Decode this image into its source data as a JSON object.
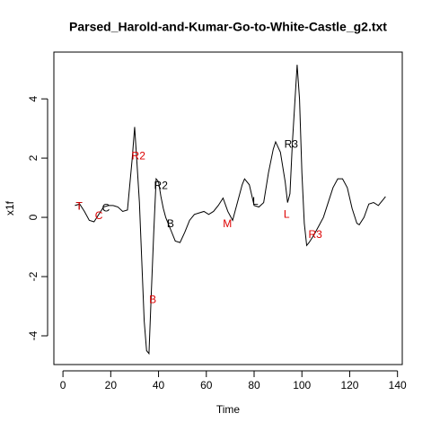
{
  "chart_data": {
    "type": "line",
    "title": "Parsed_Harold-and-Kumar-Go-to-White-Castle_g2.txt",
    "xlabel": "Time",
    "ylabel": "x1f",
    "color": "#000000",
    "x": [
      5,
      7,
      9,
      11,
      13,
      15,
      17,
      19,
      21,
      23,
      25,
      27,
      29,
      30,
      31,
      32,
      33,
      34,
      35,
      36,
      37,
      38,
      39,
      40,
      41,
      42,
      43,
      45,
      47,
      49,
      51,
      53,
      55,
      57,
      59,
      61,
      63,
      65,
      67,
      69,
      71,
      73,
      75,
      76,
      78,
      80,
      82,
      84,
      86,
      88,
      89,
      91,
      93,
      94,
      95,
      96,
      98,
      99,
      100,
      101,
      102,
      103,
      105,
      107,
      109,
      111,
      113,
      115,
      117,
      119,
      121,
      123,
      124,
      126,
      128,
      130,
      132,
      134,
      135
    ],
    "values": [
      0.4,
      0.45,
      0.2,
      -0.1,
      -0.15,
      0.1,
      0.35,
      0.4,
      0.4,
      0.35,
      0.2,
      0.25,
      2.0,
      3.05,
      1.8,
      0.5,
      -1.5,
      -3.5,
      -4.5,
      -4.6,
      -2.5,
      -0.5,
      1.3,
      1.2,
      0.7,
      0.3,
      0.0,
      -0.4,
      -0.8,
      -0.85,
      -0.5,
      -0.1,
      0.1,
      0.15,
      0.2,
      0.1,
      0.2,
      0.4,
      0.65,
      0.2,
      -0.1,
      0.5,
      1.1,
      1.3,
      1.1,
      0.4,
      0.35,
      0.5,
      1.5,
      2.3,
      2.55,
      2.2,
      1.2,
      0.5,
      0.8,
      2.5,
      5.15,
      4.0,
      1.5,
      -0.2,
      -0.95,
      -0.85,
      -0.6,
      -0.3,
      0.0,
      0.5,
      1.0,
      1.3,
      1.3,
      1.0,
      0.3,
      -0.2,
      -0.25,
      0.0,
      0.45,
      0.5,
      0.4,
      0.6,
      0.7
    ],
    "xlim": [
      -3.8,
      142
    ],
    "ylim": [
      -4.97,
      5.58
    ],
    "xticks": [
      0,
      20,
      40,
      60,
      80,
      100,
      120,
      140
    ],
    "yticks": [
      -4,
      -2,
      0,
      2,
      4
    ],
    "annotations": [
      {
        "label": "T",
        "x": 6.8,
        "y": 0.36,
        "color": "#000000"
      },
      {
        "label": "T",
        "x": 6.8,
        "y": 0.36,
        "color": "#dd0000"
      },
      {
        "label": "C",
        "x": 15,
        "y": 0.03,
        "color": "#dd0000"
      },
      {
        "label": "C",
        "x": 18,
        "y": 0.3,
        "color": "#000000"
      },
      {
        "label": "R2",
        "x": 31.6,
        "y": 2.06,
        "color": "#dd0000"
      },
      {
        "label": "R2",
        "x": 41,
        "y": 1.06,
        "color": "#000000"
      },
      {
        "label": "B",
        "x": 45,
        "y": -0.24,
        "color": "#000000"
      },
      {
        "label": "B",
        "x": 37.6,
        "y": -2.79,
        "color": "#dd0000"
      },
      {
        "label": "M",
        "x": 68.8,
        "y": -0.24,
        "color": "#dd0000"
      },
      {
        "label": "L",
        "x": 80.5,
        "y": 0.52,
        "color": "#000000"
      },
      {
        "label": "L",
        "x": 93.6,
        "y": 0.09,
        "color": "#dd0000"
      },
      {
        "label": "R3",
        "x": 95.5,
        "y": 2.45,
        "color": "#000000"
      },
      {
        "label": "R3",
        "x": 105.6,
        "y": -0.6,
        "color": "#dd0000"
      }
    ]
  }
}
